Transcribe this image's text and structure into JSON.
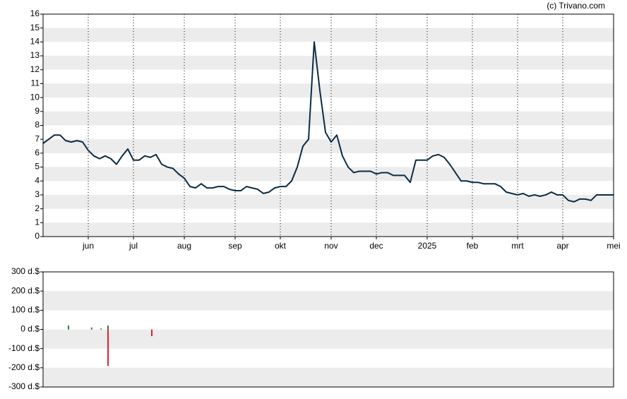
{
  "source": "(c) Trivano.com",
  "chart_data": [
    {
      "type": "line",
      "color": "#0d2b45",
      "grid": true,
      "values": [
        6.7,
        7.0,
        7.3,
        7.3,
        6.9,
        6.8,
        6.9,
        6.8,
        6.2,
        5.8,
        5.6,
        5.8,
        5.6,
        5.2,
        5.8,
        6.3,
        5.5,
        5.5,
        5.8,
        5.7,
        5.9,
        5.2,
        5.0,
        4.9,
        4.5,
        4.2,
        3.6,
        3.5,
        3.8,
        3.5,
        3.5,
        3.6,
        3.6,
        3.4,
        3.3,
        3.3,
        3.6,
        3.5,
        3.4,
        3.1,
        3.2,
        3.5,
        3.6,
        3.6,
        4.0,
        5.0,
        6.5,
        7.0,
        14.0,
        10.5,
        7.5,
        6.8,
        7.3,
        5.8,
        5.0,
        4.6,
        4.7,
        4.7,
        4.7,
        4.5,
        4.6,
        4.6,
        4.4,
        4.4,
        4.4,
        3.9,
        5.5,
        5.5,
        5.5,
        5.8,
        5.9,
        5.7,
        5.2,
        4.6,
        4.0,
        4.0,
        3.9,
        3.9,
        3.8,
        3.8,
        3.8,
        3.6,
        3.2,
        3.1,
        3.0,
        3.1,
        2.9,
        3.0,
        2.9,
        3.0,
        3.2,
        3.0,
        3.0,
        2.6,
        2.5,
        2.7,
        2.7,
        2.6,
        3.0,
        3.0,
        3.0,
        3.0
      ],
      "xlim": [
        0,
        101
      ],
      "xticks": [
        {
          "value": 8,
          "label": "jun"
        },
        {
          "value": 16,
          "label": "jul"
        },
        {
          "value": 25,
          "label": "aug"
        },
        {
          "value": 34,
          "label": "sep"
        },
        {
          "value": 42,
          "label": "okt"
        },
        {
          "value": 51,
          "label": "nov"
        },
        {
          "value": 59,
          "label": "dec"
        },
        {
          "value": 68,
          "label": "2025"
        },
        {
          "value": 76,
          "label": "feb"
        },
        {
          "value": 84,
          "label": "mrt"
        },
        {
          "value": 92,
          "label": "apr"
        },
        {
          "value": 101,
          "label": "mei"
        }
      ],
      "ylim": [
        0,
        16
      ],
      "yticks": [
        0,
        1,
        2,
        3,
        4,
        5,
        6,
        7,
        8,
        9,
        10,
        11,
        12,
        13,
        14,
        15,
        16
      ]
    },
    {
      "type": "bar",
      "color_up": "#2e7d32",
      "color_down": "#e0202a",
      "grid": true,
      "x": [
        4.5,
        8.6,
        10.25,
        11.5,
        11.5,
        19.25
      ],
      "values": [
        20,
        10,
        5,
        20,
        -190,
        -35
      ],
      "xlim": [
        0,
        101
      ],
      "ylim": [
        -300,
        300
      ],
      "yticks": [
        {
          "value": -300,
          "label": "-300 d.$"
        },
        {
          "value": -200,
          "label": "-200 d.$"
        },
        {
          "value": -100,
          "label": "-100 d.$"
        },
        {
          "value": 0,
          "label": "0 d.$"
        },
        {
          "value": 100,
          "label": "100 d.$"
        },
        {
          "value": 200,
          "label": "200 d.$"
        },
        {
          "value": 300,
          "label": "300 d.$"
        }
      ]
    }
  ]
}
